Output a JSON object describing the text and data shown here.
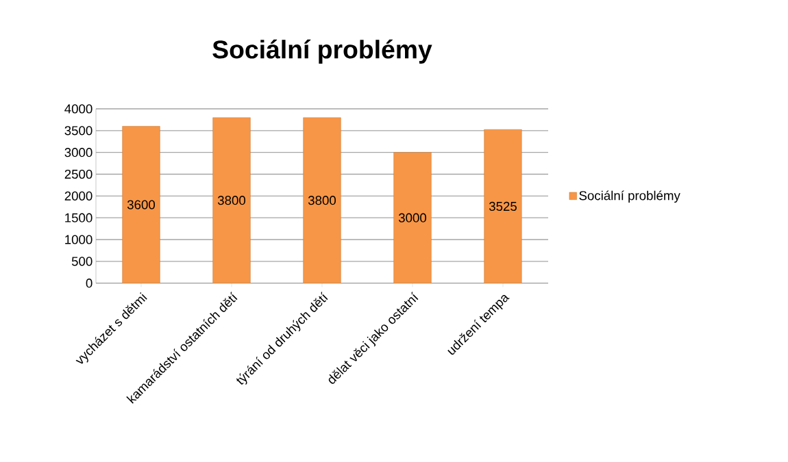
{
  "chart_data": {
    "type": "bar",
    "title": "Sociální problémy",
    "categories": [
      "vycházet s dětmi",
      "kamarádství ostatních dětí",
      "týrání od druhých dětí",
      "dělat věci jako ostatní",
      "udržení tempa"
    ],
    "series": [
      {
        "name": "Sociální problémy",
        "color": "#f79646",
        "values": [
          3600,
          3800,
          3800,
          3000,
          3525
        ]
      }
    ],
    "ylim": [
      0,
      4000
    ],
    "yticks": [
      0,
      500,
      1000,
      1500,
      2000,
      2500,
      3000,
      3500,
      4000
    ],
    "grid": "y",
    "legend": "right",
    "data_labels": true
  }
}
